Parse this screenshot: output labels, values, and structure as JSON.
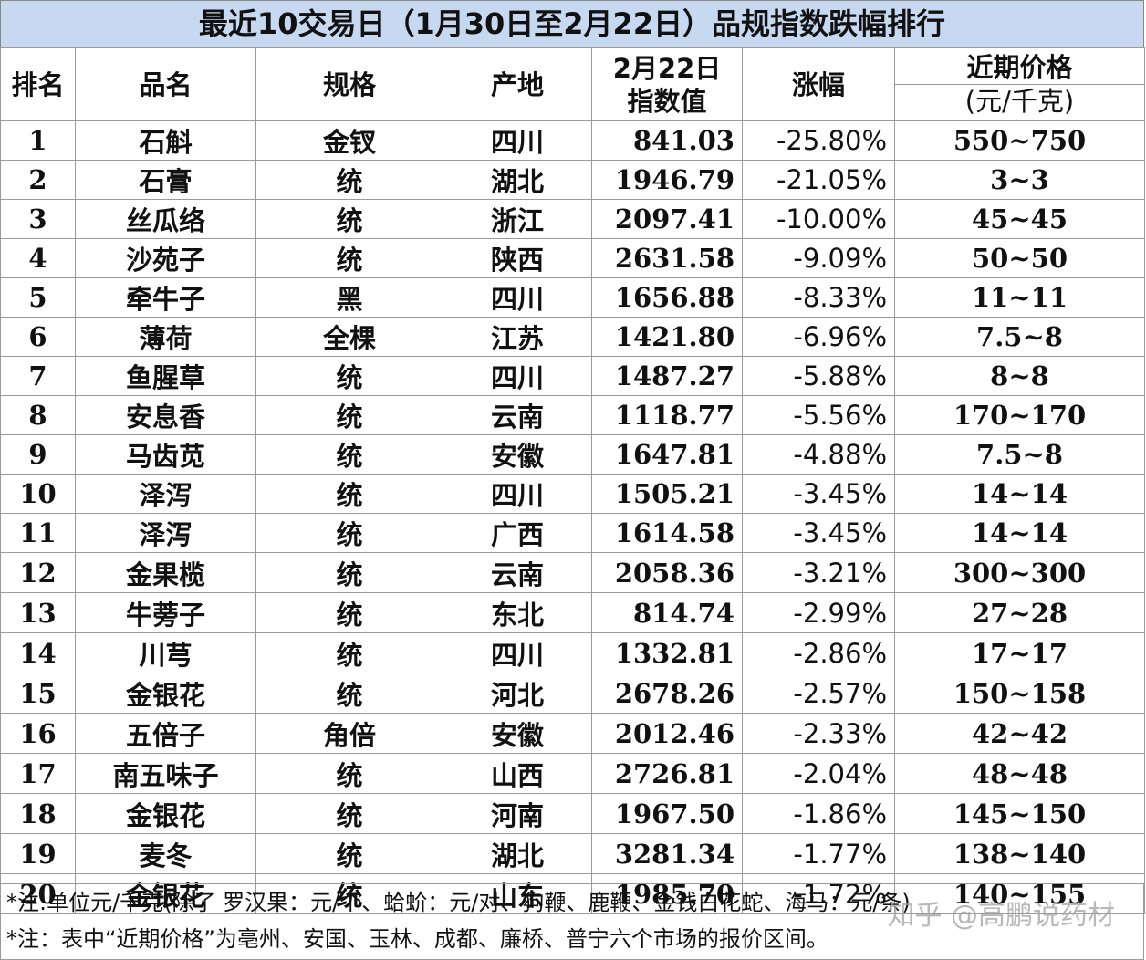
{
  "title": "最近10交易日（1月30日至2月22日）品规指数跌幅排行",
  "table": {
    "header": [
      [
        "排名"
      ],
      [
        "品名"
      ],
      [
        "规格"
      ],
      [
        "产地"
      ],
      [
        "2月22日",
        "指数值"
      ],
      [
        "涨幅"
      ],
      [
        "近期价格",
        "(元/千克)"
      ]
    ],
    "rows": [
      [
        "1",
        "石斛",
        "金钗",
        "四川",
        "841.03",
        "-25.80%",
        "550~750"
      ],
      [
        "2",
        "石膏",
        "统",
        "湖北",
        "1946.79",
        "-21.05%",
        "3~3"
      ],
      [
        "3",
        "丝瓜络",
        "统",
        "浙江",
        "2097.41",
        "-10.00%",
        "45~45"
      ],
      [
        "4",
        "沙苑子",
        "统",
        "陕西",
        "2631.58",
        "-9.09%",
        "50~50"
      ],
      [
        "5",
        "牵牛子",
        "黑",
        "四川",
        "1656.88",
        "-8.33%",
        "11~11"
      ],
      [
        "6",
        "薄荷",
        "全棵",
        "江苏",
        "1421.80",
        "-6.96%",
        "7.5~8"
      ],
      [
        "7",
        "鱼腥草",
        "统",
        "四川",
        "1487.27",
        "-5.88%",
        "8~8"
      ],
      [
        "8",
        "安息香",
        "统",
        "云南",
        "1118.77",
        "-5.56%",
        "170~170"
      ],
      [
        "9",
        "马齿苋",
        "统",
        "安徽",
        "1647.81",
        "-4.88%",
        "7.5~8"
      ],
      [
        "10",
        "泽泻",
        "统",
        "四川",
        "1505.21",
        "-3.45%",
        "14~14"
      ],
      [
        "11",
        "泽泻",
        "统",
        "广西",
        "1614.58",
        "-3.45%",
        "14~14"
      ],
      [
        "12",
        "金果榄",
        "统",
        "云南",
        "2058.36",
        "-3.21%",
        "300~300"
      ],
      [
        "13",
        "牛蒡子",
        "统",
        "东北",
        "814.74",
        "-2.99%",
        "27~28"
      ],
      [
        "14",
        "川芎",
        "统",
        "四川",
        "1332.81",
        "-2.86%",
        "17~17"
      ],
      [
        "15",
        "金银花",
        "统",
        "河北",
        "2678.26",
        "-2.57%",
        "150~158"
      ],
      [
        "16",
        "五倍子",
        "角倍",
        "安徽",
        "2012.46",
        "-2.33%",
        "42~42"
      ],
      [
        "17",
        "南五味子",
        "统",
        "山西",
        "2726.81",
        "-2.04%",
        "48~48"
      ],
      [
        "18",
        "金银花",
        "统",
        "河南",
        "1967.50",
        "-1.86%",
        "145~150"
      ],
      [
        "19",
        "麦冬",
        "统",
        "湖北",
        "3281.34",
        "-1.77%",
        "138~140"
      ],
      [
        "20",
        "金银花",
        "统",
        "山东",
        "1985.70",
        "-1.72%",
        "140~155"
      ]
    ]
  },
  "notes": [
    "*注:单位元/千克(除了 罗汉果：元/个、蛤蚧：元/对、狗鞭、鹿鞭、金钱白花蛇、海马：元/条)",
    "*注：表中“近期价格”为亳州、安国、玉林、成都、廉桥、普宁六个市场的报价区间。"
  ],
  "watermark": "知乎 @高鹏说药材"
}
